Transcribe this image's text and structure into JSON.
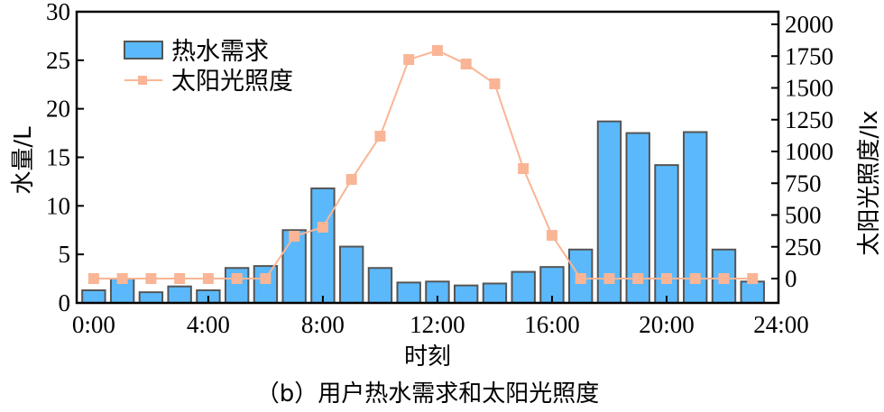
{
  "chart_data": {
    "type": "bar",
    "title": "",
    "caption": "（b）用户热水需求和太阳光照度",
    "xlabel": "时刻",
    "ylabel": "水量/L",
    "y2label": "太阳光照度/lx",
    "x_tick_labels": [
      "0:00",
      "4:00",
      "8:00",
      "12:00",
      "16:00",
      "20:00",
      "24:00"
    ],
    "categories": [
      0,
      1,
      2,
      3,
      4,
      5,
      6,
      7,
      8,
      9,
      10,
      11,
      12,
      13,
      14,
      15,
      16,
      17,
      18,
      19,
      20,
      21,
      22,
      23
    ],
    "ylim": [
      0,
      30
    ],
    "y_ticks": [
      0,
      5,
      10,
      15,
      20,
      25,
      30
    ],
    "y2lim": [
      -200,
      2080
    ],
    "y2_ticks": [
      0,
      250,
      500,
      750,
      1000,
      1250,
      1500,
      1750,
      2000
    ],
    "grid": false,
    "legend_position": "upper left",
    "series": [
      {
        "name": "热水需求",
        "type": "bar",
        "axis": "left",
        "color": "#5bb9fb",
        "edge_color": "#555555",
        "values": [
          1.3,
          2.5,
          1.1,
          1.7,
          1.3,
          3.6,
          3.8,
          7.5,
          11.8,
          5.8,
          3.6,
          2.1,
          2.2,
          1.8,
          2.0,
          3.2,
          3.7,
          5.5,
          18.7,
          17.5,
          14.2,
          17.6,
          5.5,
          2.2
        ]
      },
      {
        "name": "太阳光照度",
        "type": "line",
        "axis": "right",
        "color": "#f9b595",
        "marker": "square",
        "values": [
          0,
          0,
          0,
          0,
          0,
          0,
          0,
          333,
          404,
          780,
          1120,
          1723,
          1794,
          1688,
          1532,
          865,
          340,
          0,
          0,
          0,
          0,
          0,
          0,
          0
        ]
      }
    ]
  }
}
